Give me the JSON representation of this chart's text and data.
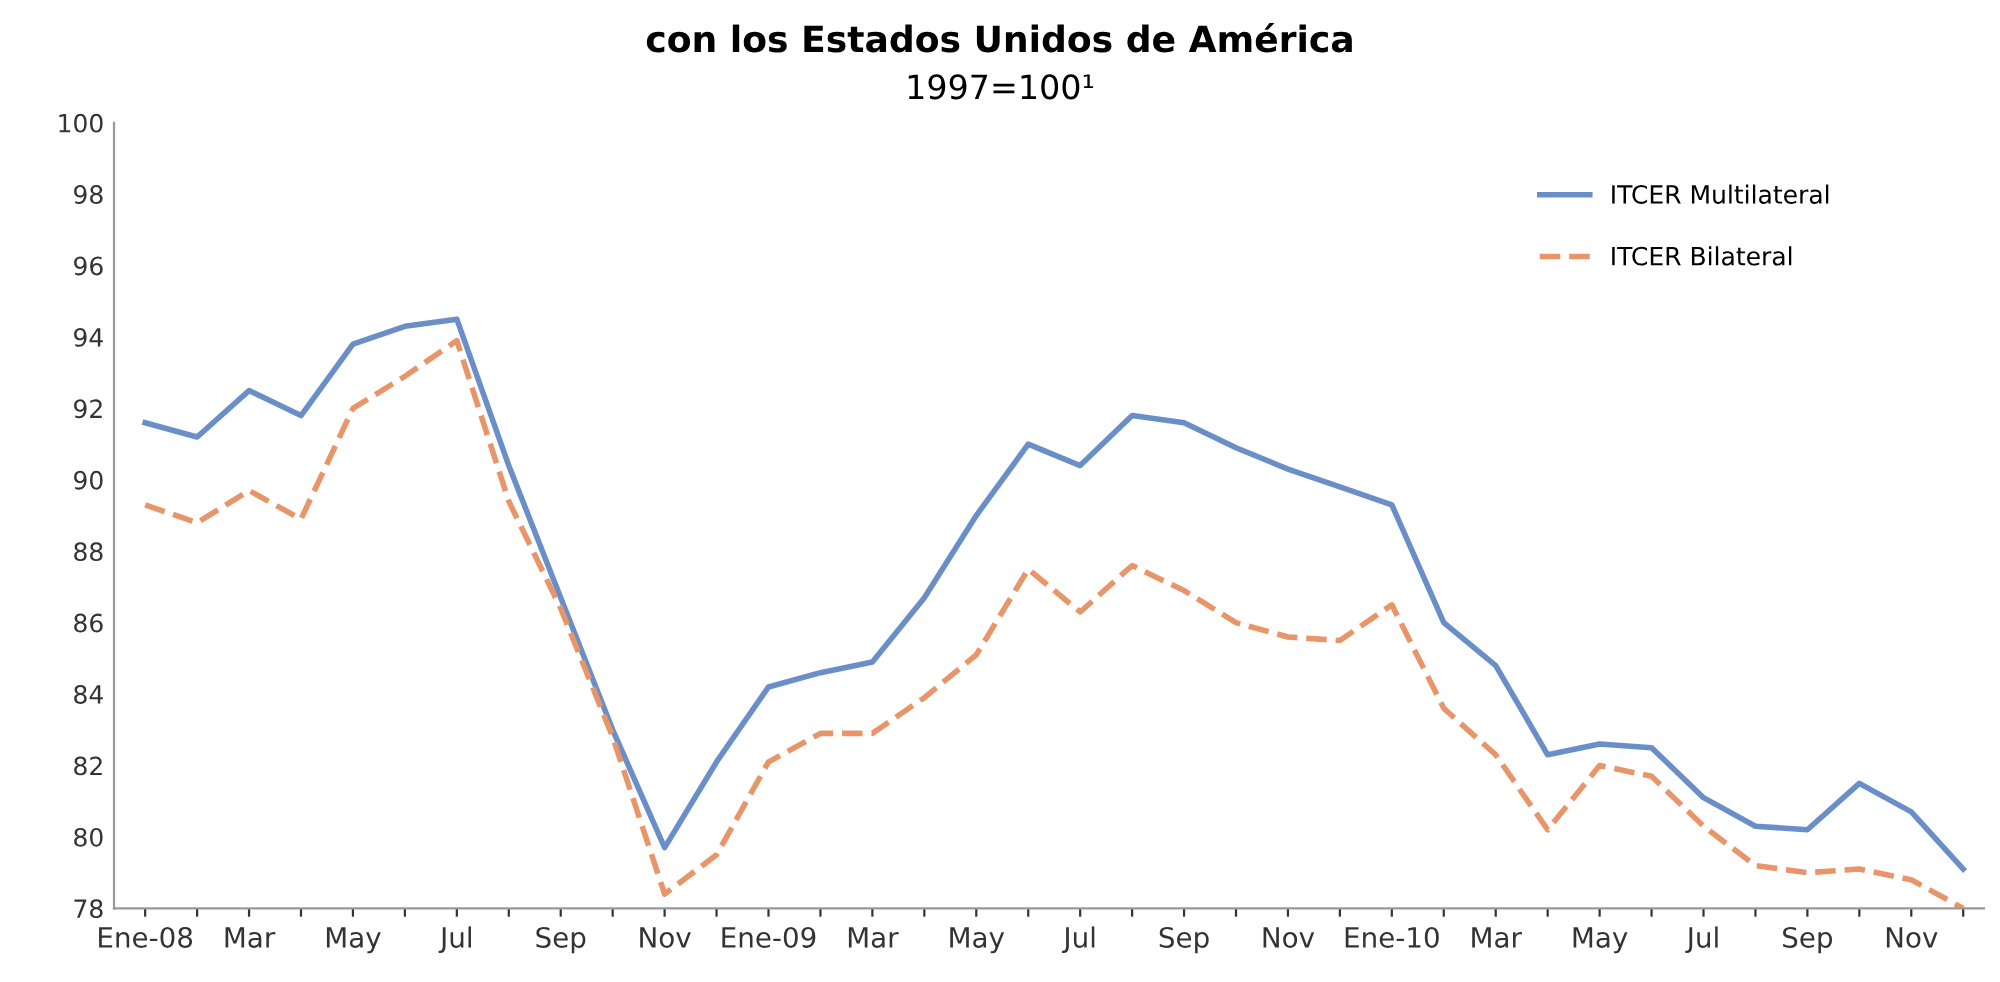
{
  "chart_data": {
    "type": "line",
    "title": "con los Estados Unidos de América",
    "subtitle": "1997=100¹",
    "categories": [
      "Ene-08",
      null,
      "Mar",
      null,
      "May",
      null,
      "Jul",
      null,
      "Sep",
      null,
      "Nov",
      null,
      "Ene-09",
      null,
      "Mar",
      null,
      "May",
      null,
      "Jul",
      null,
      "Sep",
      null,
      "Nov",
      null,
      "Ene-10",
      null,
      "Mar",
      null,
      "May",
      null,
      "Jul",
      null,
      "Sep",
      null,
      "Nov",
      null
    ],
    "series": [
      {
        "name": "ITCER Multilateral",
        "color": "#6a8fc8",
        "line_style": "solid",
        "values": [
          91.6,
          91.2,
          92.5,
          91.8,
          93.8,
          94.3,
          94.5,
          90.4,
          86.7,
          83.0,
          79.7,
          82.1,
          84.2,
          84.6,
          84.9,
          86.7,
          89.0,
          91.0,
          90.4,
          91.8,
          91.6,
          90.9,
          90.3,
          89.8,
          89.3,
          86.0,
          84.8,
          82.3,
          82.6,
          82.5,
          81.1,
          80.3,
          80.2,
          81.5,
          80.7,
          79.1
        ]
      },
      {
        "name": "ITCER Bilateral",
        "color": "#e8956a",
        "line_style": "dashed",
        "values": [
          89.3,
          88.8,
          89.7,
          88.9,
          92.0,
          92.9,
          93.9,
          89.4,
          86.4,
          82.8,
          78.4,
          79.5,
          82.1,
          82.9,
          82.9,
          83.9,
          85.1,
          87.5,
          86.3,
          87.6,
          86.9,
          86.0,
          85.6,
          85.5,
          86.5,
          83.6,
          82.3,
          80.2,
          82.0,
          81.7,
          80.3,
          79.2,
          79.0,
          79.1,
          78.8,
          78.0
        ]
      }
    ],
    "ylim": [
      78,
      100
    ],
    "yticks": [
      78,
      80,
      82,
      84,
      86,
      88,
      90,
      92,
      94,
      96,
      98,
      100
    ],
    "grid": false,
    "legend": "top right",
    "marker": "none"
  }
}
